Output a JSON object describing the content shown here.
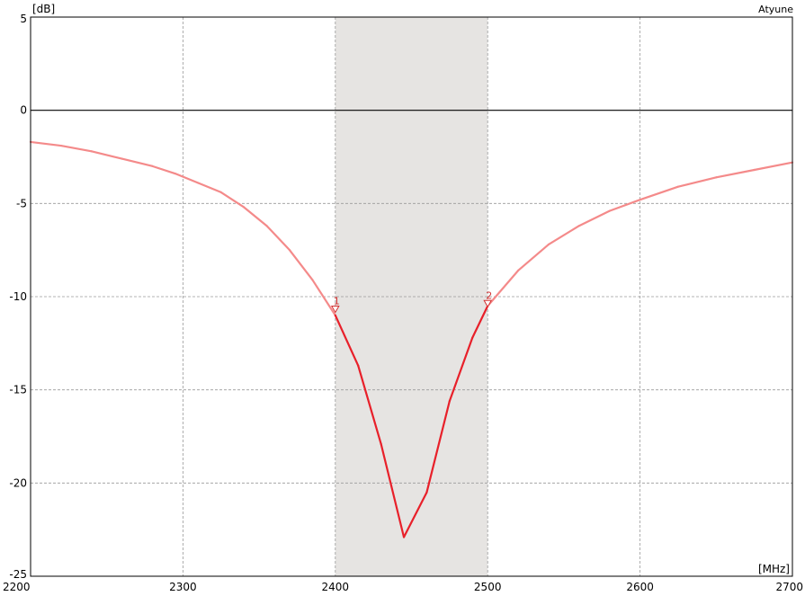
{
  "chart_data": {
    "type": "line",
    "title": "",
    "brand": "Atyune",
    "xlabel": "[MHz]",
    "ylabel": "[dB]",
    "xlim": [
      2200,
      2700
    ],
    "ylim": [
      -25,
      5
    ],
    "x_ticks": [
      2200,
      2300,
      2400,
      2500,
      2600,
      2700
    ],
    "y_ticks": [
      5,
      0,
      -5,
      -10,
      -15,
      -20,
      -25
    ],
    "grid": true,
    "highlight_band": [
      2400,
      2500
    ],
    "colors": {
      "in_band": "#e8202a",
      "out_band": "#f48a8a",
      "band_fill": "#e6e4e2",
      "grid": "#9a9a9a",
      "marker": "#d43030"
    },
    "series": [
      {
        "x": [
          2200,
          2220,
          2240,
          2260,
          2280,
          2295,
          2310,
          2325,
          2340,
          2355,
          2370,
          2385,
          2400,
          2415,
          2430,
          2445,
          2460,
          2475,
          2490,
          2500,
          2520,
          2540,
          2560,
          2580,
          2600,
          2625,
          2650,
          2675,
          2700
        ],
        "y": [
          -1.7,
          -1.9,
          -2.2,
          -2.6,
          -3.0,
          -3.4,
          -3.9,
          -4.4,
          -5.2,
          -6.2,
          -7.5,
          -9.1,
          -11.0,
          -13.7,
          -17.9,
          -22.9,
          -20.5,
          -15.6,
          -12.2,
          -10.5,
          -8.6,
          -7.2,
          -6.2,
          -5.4,
          -4.8,
          -4.1,
          -3.6,
          -3.2,
          -2.8
        ]
      }
    ],
    "markers": [
      {
        "label": "1",
        "x": 2400,
        "y": -10.7
      },
      {
        "label": "2",
        "x": 2500,
        "y": -10.4
      }
    ]
  }
}
